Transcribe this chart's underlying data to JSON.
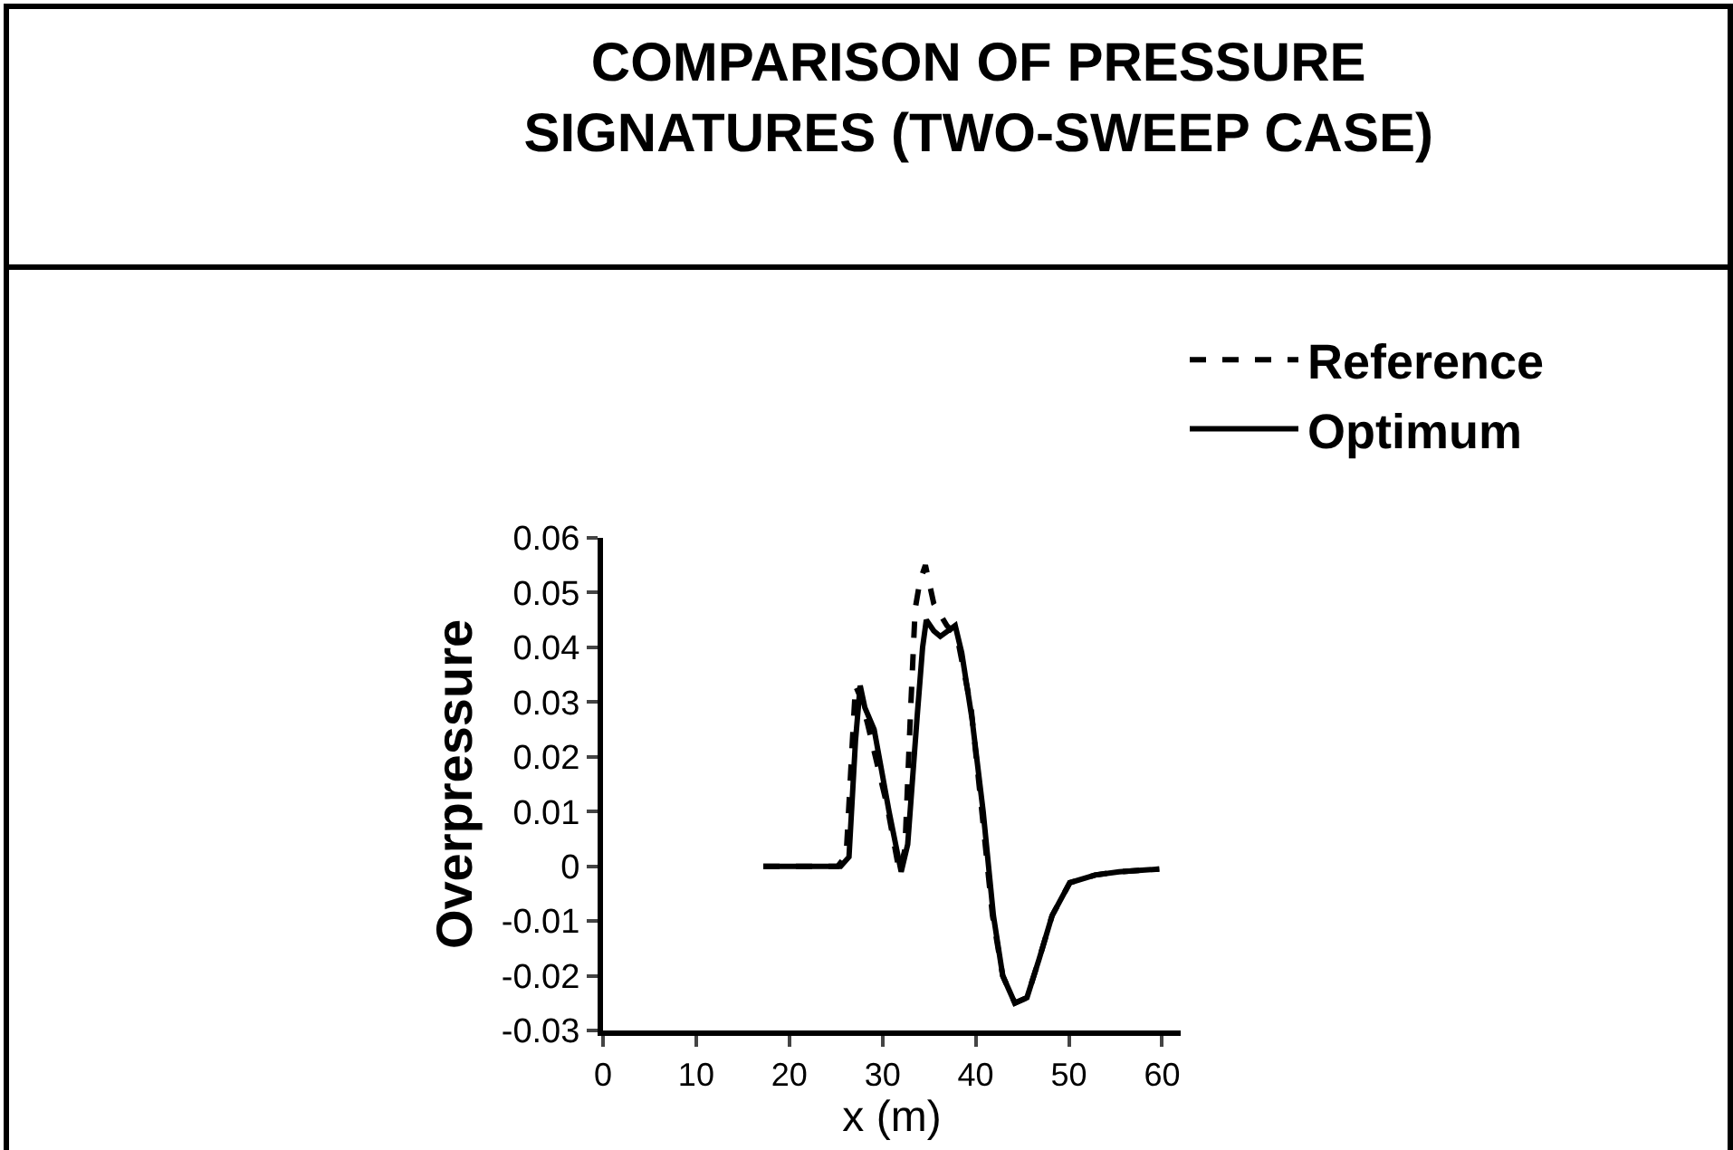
{
  "chart_data": {
    "type": "line",
    "title": "COMPARISON OF PRESSURE\nSIGNATURES (TWO-SWEEP CASE)",
    "xlabel": "x (m)",
    "ylabel": "Overpressure",
    "xlim": [
      0,
      62
    ],
    "xticks": [
      0,
      10,
      20,
      30,
      40,
      50,
      60
    ],
    "ylim": [
      -0.03,
      0.06
    ],
    "yticks": [
      -0.03,
      -0.02,
      -0.01,
      0,
      0.01,
      0.02,
      0.03,
      0.04,
      0.05,
      0.06
    ],
    "grid": false,
    "legend": "top right",
    "series": [
      {
        "name": "Reference",
        "color": "#000000",
        "line_style": "dashed",
        "x": [
          17.2,
          25.2,
          26.1,
          26.8,
          27.1,
          27.6,
          28.4,
          30.5,
          31.8,
          32.4,
          33,
          33.5,
          34,
          34.6,
          35.5,
          36.9,
          38,
          39.5,
          40.6,
          41.8,
          42.9,
          44.2,
          45.5,
          46.8,
          48.2,
          50.1,
          52.8,
          55.4,
          59.7
        ],
        "values": [
          0,
          0,
          0.002,
          0.024,
          0.033,
          0.031,
          0.026,
          0.011,
          -0.001,
          0.003,
          0.028,
          0.047,
          0.052,
          0.055,
          0.048,
          0.044,
          0.042,
          0.029,
          0.011,
          -0.009,
          -0.02,
          -0.025,
          -0.024,
          -0.017,
          -0.009,
          -0.003,
          -0.0016,
          -0.001,
          -0.0005
        ]
      },
      {
        "name": "Optimum",
        "color": "#000000",
        "line_style": "solid",
        "x": [
          17.2,
          25.5,
          26.4,
          27.1,
          27.6,
          28.1,
          29.1,
          30.7,
          32,
          32.7,
          33.7,
          34.3,
          34.7,
          35.5,
          36.2,
          37.8,
          38.5,
          39.6,
          40.8,
          41.9,
          42.9,
          44.2,
          45.5,
          46.8,
          48.2,
          50.1,
          52.8,
          55.4,
          59.7
        ],
        "values": [
          0,
          0,
          0.0017,
          0.023,
          0.033,
          0.029,
          0.025,
          0.01,
          -0.001,
          0.004,
          0.027,
          0.04,
          0.045,
          0.043,
          0.042,
          0.044,
          0.039,
          0.027,
          0.01,
          -0.009,
          -0.02,
          -0.025,
          -0.024,
          -0.017,
          -0.009,
          -0.003,
          -0.0016,
          -0.001,
          -0.0005
        ]
      }
    ]
  }
}
